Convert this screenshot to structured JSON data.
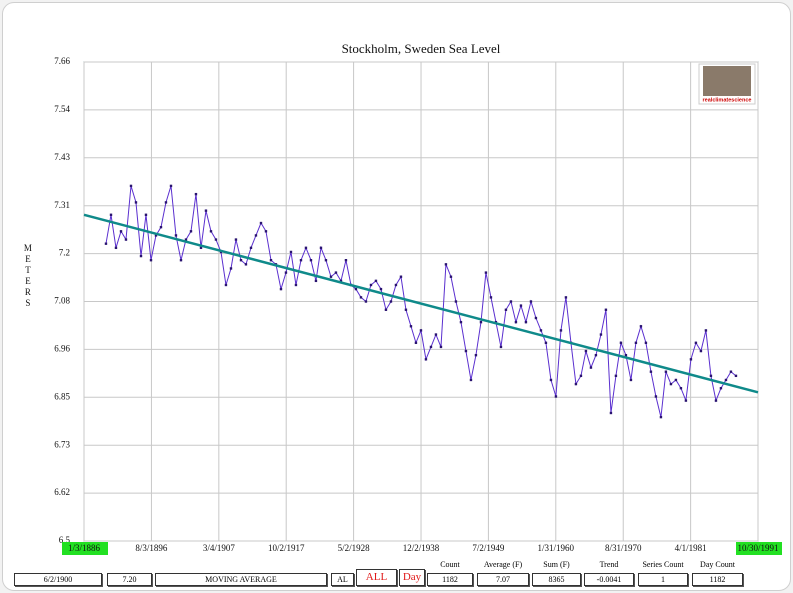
{
  "chart_data": {
    "type": "line",
    "title": "Stockholm, Sweden Sea Level",
    "y_label": "METERS",
    "watermark": "realclimatescience",
    "xlim": [
      1886.0,
      1991.83
    ],
    "ylim": [
      6.5,
      7.66
    ],
    "grid": true,
    "xticks": [
      {
        "value": 1886.0,
        "label": "1/3/1886"
      },
      {
        "value": 1896.59,
        "label": "8/3/1896"
      },
      {
        "value": 1907.17,
        "label": "3/4/1907"
      },
      {
        "value": 1917.75,
        "label": "10/2/1917"
      },
      {
        "value": 1928.33,
        "label": "5/2/1928"
      },
      {
        "value": 1938.92,
        "label": "12/2/1938"
      },
      {
        "value": 1949.5,
        "label": "7/2/1949"
      },
      {
        "value": 1960.08,
        "label": "1/31/1960"
      },
      {
        "value": 1970.67,
        "label": "8/31/1970"
      },
      {
        "value": 1981.25,
        "label": "4/1/1981"
      },
      {
        "value": 1991.83,
        "label": "10/30/1991"
      }
    ],
    "yticks": [
      6.5,
      {
        "value": 6.616,
        "label": "6.62"
      },
      {
        "value": 6.732,
        "label": "6.73"
      },
      {
        "value": 6.848,
        "label": "6.85"
      },
      {
        "value": 6.964,
        "label": "6.96"
      },
      7.08,
      {
        "value": 7.196,
        "label": "7.2"
      },
      {
        "value": 7.312,
        "label": "7.31"
      },
      {
        "value": 7.428,
        "label": "7.43"
      },
      {
        "value": 7.544,
        "label": "7.54"
      },
      7.66
    ],
    "series": [
      {
        "color": "#5a2fcf",
        "markers": true,
        "line_width": 1,
        "x": [
          1889.45,
          1890.24,
          1891.02,
          1891.81,
          1892.59,
          1893.38,
          1894.16,
          1894.95,
          1895.73,
          1896.52,
          1897.3,
          1898.09,
          1898.87,
          1899.66,
          1900.44,
          1901.23,
          1902.01,
          1902.8,
          1903.58,
          1904.37,
          1905.15,
          1905.94,
          1906.72,
          1907.51,
          1908.29,
          1909.08,
          1909.86,
          1910.65,
          1911.43,
          1912.22,
          1913.0,
          1913.79,
          1914.57,
          1915.36,
          1916.14,
          1916.93,
          1917.71,
          1918.5,
          1919.28,
          1920.07,
          1920.85,
          1921.64,
          1922.42,
          1923.21,
          1923.99,
          1924.78,
          1925.56,
          1926.35,
          1927.13,
          1927.92,
          1928.7,
          1929.49,
          1930.27,
          1931.06,
          1931.84,
          1932.63,
          1933.41,
          1934.2,
          1934.98,
          1935.77,
          1936.55,
          1937.34,
          1938.12,
          1938.91,
          1939.69,
          1940.48,
          1941.26,
          1942.05,
          1942.83,
          1943.62,
          1944.4,
          1945.19,
          1945.97,
          1946.76,
          1947.54,
          1948.33,
          1949.11,
          1949.9,
          1950.68,
          1951.47,
          1952.25,
          1953.04,
          1953.82,
          1954.61,
          1955.39,
          1956.18,
          1956.96,
          1957.75,
          1958.53,
          1959.32,
          1960.1,
          1960.89,
          1961.67,
          1962.46,
          1963.24,
          1964.03,
          1964.81,
          1965.6,
          1966.38,
          1967.17,
          1967.95,
          1968.74,
          1969.52,
          1970.31,
          1971.09,
          1971.88,
          1972.66,
          1973.45,
          1974.23,
          1975.02,
          1975.8,
          1976.59,
          1977.37,
          1978.16,
          1978.94,
          1979.73,
          1980.51,
          1981.3,
          1982.08,
          1982.87,
          1983.65,
          1984.44,
          1985.23,
          1986.01,
          1986.8,
          1987.58,
          1988.37
        ],
        "values": [
          7.22,
          7.29,
          7.21,
          7.25,
          7.23,
          7.36,
          7.32,
          7.19,
          7.29,
          7.18,
          7.24,
          7.26,
          7.32,
          7.36,
          7.24,
          7.18,
          7.23,
          7.25,
          7.34,
          7.21,
          7.3,
          7.25,
          7.23,
          7.2,
          7.12,
          7.16,
          7.23,
          7.18,
          7.17,
          7.21,
          7.24,
          7.27,
          7.25,
          7.18,
          7.17,
          7.11,
          7.15,
          7.2,
          7.12,
          7.18,
          7.21,
          7.18,
          7.13,
          7.21,
          7.18,
          7.14,
          7.15,
          7.13,
          7.18,
          7.12,
          7.11,
          7.09,
          7.08,
          7.12,
          7.13,
          7.11,
          7.06,
          7.08,
          7.12,
          7.14,
          7.06,
          7.02,
          6.98,
          7.01,
          6.94,
          6.97,
          7.0,
          6.97,
          7.17,
          7.14,
          7.08,
          7.03,
          6.96,
          6.89,
          6.95,
          7.03,
          7.15,
          7.09,
          7.03,
          6.97,
          7.06,
          7.08,
          7.03,
          7.07,
          7.03,
          7.08,
          7.04,
          7.01,
          6.98,
          6.89,
          6.85,
          7.01,
          7.09,
          6.98,
          6.88,
          6.9,
          6.96,
          6.92,
          6.95,
          7.0,
          7.06,
          6.81,
          6.9,
          6.98,
          6.95,
          6.89,
          6.98,
          7.02,
          6.98,
          6.91,
          6.85,
          6.8,
          6.91,
          6.88,
          6.89,
          6.87,
          6.84,
          6.94,
          6.98,
          6.96,
          7.01,
          6.9,
          6.84,
          6.87,
          6.89,
          6.91,
          6.9
        ]
      },
      {
        "color": "#0f8a8a",
        "markers": false,
        "line_width": 2.5,
        "x": [
          1886.0,
          1991.83
        ],
        "values": [
          7.29,
          6.86
        ]
      }
    ]
  },
  "status_bar": {
    "date": "6/2/1900",
    "value": "7.20",
    "mode": "MOVING AVERAGE",
    "field": "AL",
    "range_button": "ALL",
    "period_button": "Day",
    "stats": [
      {
        "label": "Count",
        "value": 1182
      },
      {
        "label": "Average (F)",
        "value": 7.07
      },
      {
        "label": "Sum (F)",
        "value": 8365
      },
      {
        "label": "Trend",
        "value": -0.0041
      },
      {
        "label": "Series Count",
        "value": 1
      },
      {
        "label": "Day Count",
        "value": 1182
      }
    ]
  }
}
